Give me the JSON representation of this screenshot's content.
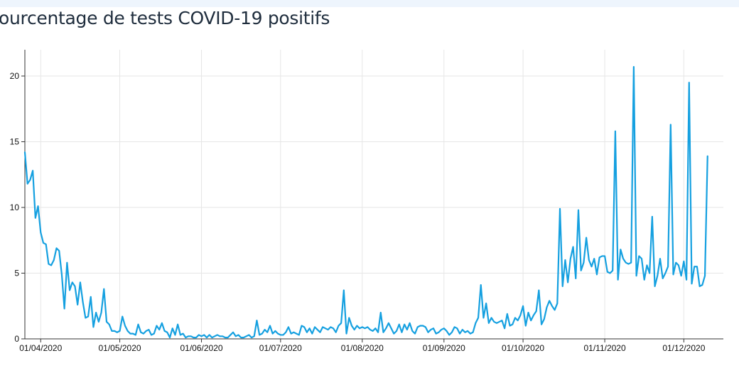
{
  "title": "ourcentage de tests COVID-19 positifs",
  "colors": {
    "line": "#15a0e0",
    "grid": "#e6e6e6",
    "axis": "#333333",
    "header_strip": "#eef5fd"
  },
  "chart_data": {
    "type": "line",
    "title": "ourcentage de tests COVID-19 positifs",
    "xlabel": "",
    "ylabel": "",
    "x_start": "2020-03-26",
    "xlim": [
      "2020-03-26",
      "2020-12-16"
    ],
    "ylim": [
      0,
      22
    ],
    "grid": true,
    "x_tick_labels": [
      "01/04/2020",
      "01/05/2020",
      "01/06/2020",
      "01/07/2020",
      "01/08/2020",
      "01/09/2020",
      "01/10/2020",
      "01/11/2020",
      "01/12/2020"
    ],
    "x_tick_dates": [
      "2020-04-01",
      "2020-05-01",
      "2020-06-01",
      "2020-07-01",
      "2020-08-01",
      "2020-09-01",
      "2020-10-01",
      "2020-11-01",
      "2020-12-01"
    ],
    "y_ticks": [
      0,
      5,
      10,
      15,
      20
    ],
    "series": [
      {
        "values": [
          14.2,
          11.8,
          12.1,
          12.8,
          9.2,
          10.1,
          8.1,
          7.3,
          7.2,
          5.7,
          5.6,
          6.0,
          6.9,
          6.7,
          4.9,
          2.3,
          5.8,
          3.7,
          4.3,
          4.0,
          2.6,
          4.3,
          2.8,
          1.6,
          1.7,
          3.2,
          0.9,
          2.0,
          1.3,
          2.0,
          3.8,
          1.3,
          1.1,
          0.6,
          0.6,
          0.5,
          0.6,
          1.7,
          1.0,
          0.6,
          0.4,
          0.4,
          0.3,
          1.1,
          0.5,
          0.4,
          0.6,
          0.7,
          0.3,
          0.4,
          1.0,
          0.7,
          1.2,
          0.6,
          0.5,
          0.1,
          0.8,
          0.3,
          1.1,
          0.3,
          0.4,
          0.1,
          0.2,
          0.2,
          0.1,
          0.1,
          0.3,
          0.2,
          0.3,
          0.1,
          0.3,
          0.1,
          0.2,
          0.3,
          0.2,
          0.2,
          0.1,
          0.1,
          0.3,
          0.5,
          0.2,
          0.3,
          0.1,
          0.1,
          0.2,
          0.3,
          0.1,
          0.2,
          1.4,
          0.3,
          0.4,
          0.7,
          0.5,
          1.0,
          0.4,
          0.6,
          0.4,
          0.3,
          0.3,
          0.5,
          0.9,
          0.4,
          0.5,
          0.4,
          0.3,
          1.0,
          0.9,
          0.5,
          0.8,
          0.4,
          0.9,
          0.7,
          0.5,
          0.9,
          0.8,
          0.7,
          0.9,
          0.8,
          0.5,
          1.0,
          1.2,
          3.7,
          0.4,
          1.6,
          1.0,
          0.7,
          1.0,
          0.8,
          0.9,
          0.8,
          0.9,
          0.7,
          0.6,
          0.8,
          0.5,
          2.0,
          0.5,
          0.8,
          1.2,
          0.8,
          0.4,
          0.6,
          1.1,
          0.5,
          1.1,
          0.7,
          1.2,
          0.6,
          0.4,
          0.9,
          1.0,
          1.0,
          0.9,
          0.5,
          0.7,
          0.8,
          0.4,
          0.5,
          0.7,
          0.8,
          0.6,
          0.3,
          0.5,
          0.9,
          0.8,
          0.4,
          0.7,
          0.5,
          0.6,
          0.4,
          0.5,
          1.2,
          1.6,
          4.1,
          1.6,
          2.7,
          1.2,
          1.6,
          1.3,
          1.2,
          1.3,
          1.4,
          0.8,
          1.9,
          1.0,
          1.1,
          1.6,
          1.4,
          1.8,
          2.5,
          1.0,
          2.0,
          1.4,
          1.8,
          2.1,
          3.7,
          1.1,
          1.5,
          2.4,
          2.9,
          2.5,
          2.2,
          2.7,
          9.9,
          4.0,
          6.0,
          4.3,
          6.1,
          7.0,
          4.6,
          9.8,
          5.2,
          5.8,
          7.7,
          6.0,
          5.5,
          6.1,
          4.9,
          6.2,
          6.3,
          6.3,
          5.1,
          5.0,
          5.2,
          15.8,
          4.5,
          6.8,
          6.1,
          5.8,
          5.7,
          5.8,
          20.7,
          4.8,
          6.3,
          6.1,
          4.5,
          5.6,
          5.0,
          9.3,
          4.0,
          4.8,
          6.1,
          4.6,
          5.0,
          5.5,
          16.3,
          4.9,
          5.8,
          5.6,
          4.8,
          5.9,
          4.5,
          19.5,
          4.2,
          5.5,
          5.5,
          4.0,
          4.1,
          4.8,
          13.9
        ]
      }
    ]
  }
}
